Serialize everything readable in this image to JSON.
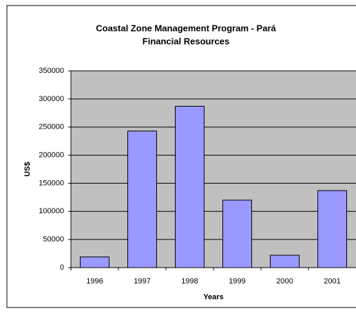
{
  "chart_data": {
    "type": "bar",
    "title": [
      "Coastal Zone Management Program - Pará",
      "Financial Resources"
    ],
    "x_label": "Years",
    "y_label": "US$",
    "categories": [
      "1996",
      "1997",
      "1998",
      "1999",
      "2000",
      "2001"
    ],
    "values": [
      19000,
      243000,
      287000,
      120000,
      22000,
      137000
    ],
    "color": "#9999ff",
    "ylim": [
      0,
      350000
    ],
    "yticks": [
      0,
      50000,
      100000,
      150000,
      200000,
      250000,
      300000,
      350000
    ],
    "grid": true
  }
}
